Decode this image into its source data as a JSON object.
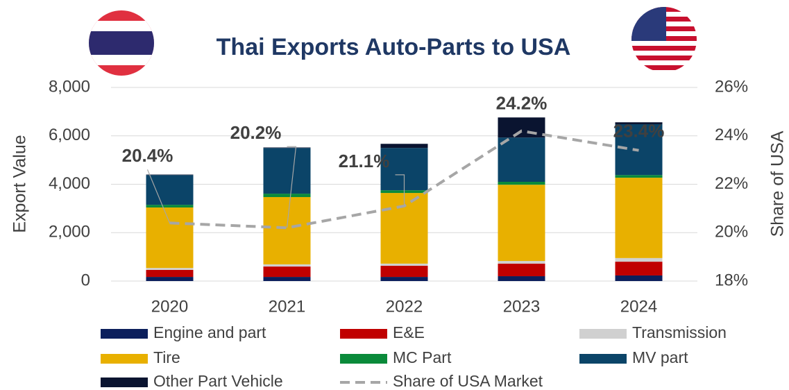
{
  "chart_data": {
    "type": "stacked_bar_line",
    "title": "Thai Exports Auto-Parts to  USA",
    "y_label": "Export Value",
    "y2_label": "Share of USA",
    "categories": [
      "2020",
      "2021",
      "2022",
      "2023",
      "2024"
    ],
    "series": [
      {
        "name": "Engine and part",
        "color": "#0c1f5c",
        "values": [
          170,
          170,
          170,
          200,
          230
        ]
      },
      {
        "name": "E&E",
        "color": "#c00000",
        "values": [
          290,
          430,
          460,
          520,
          570
        ]
      },
      {
        "name": "Transmission",
        "color": "#d0d0d0",
        "values": [
          80,
          90,
          90,
          110,
          150
        ]
      },
      {
        "name": "Tire",
        "color": "#e8b000",
        "values": [
          2500,
          2780,
          2920,
          3150,
          3320
        ]
      },
      {
        "name": "MC Part",
        "color": "#0a8a3a",
        "values": [
          110,
          140,
          110,
          120,
          110
        ]
      },
      {
        "name": "MV part",
        "color": "#0b4468",
        "values": [
          1230,
          1890,
          1750,
          1830,
          2100
        ]
      },
      {
        "name": "Other Part Vehicle",
        "color": "#0a1430",
        "values": [
          20,
          20,
          170,
          830,
          80
        ]
      },
      {
        "name": "Share of USA Market",
        "color": "#a6a6a6",
        "axis": "y2",
        "dashed": true,
        "values": [
          20.4,
          20.2,
          21.1,
          24.2,
          23.4
        ],
        "value_labels": [
          "20.4%",
          "20.2%",
          "21.1%",
          "24.2%",
          "23.4%"
        ]
      }
    ],
    "ylim": [
      0,
      8000
    ],
    "yticks": [
      0,
      {
        "value": 2000,
        "label": "2,000"
      },
      {
        "value": 4000,
        "label": "4,000"
      },
      {
        "value": 6000,
        "label": "6,000"
      },
      {
        "value": 8000,
        "label": "8,000"
      }
    ],
    "y2lim": [
      18,
      26
    ],
    "y2ticks": [
      {
        "value": 18,
        "label": "18%"
      },
      {
        "value": 20,
        "label": "20%"
      },
      {
        "value": 22,
        "label": "22%"
      },
      {
        "value": 24,
        "label": "24%"
      },
      {
        "value": 26,
        "label": "26%"
      }
    ],
    "grid": true
  }
}
